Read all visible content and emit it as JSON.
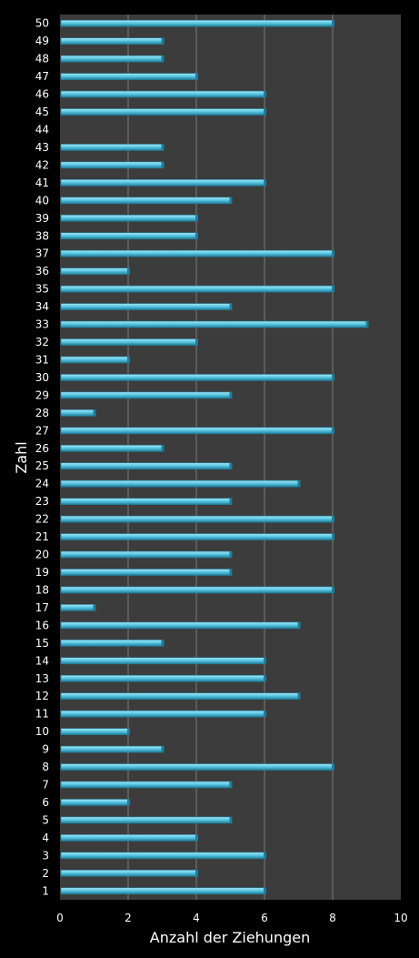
{
  "chart_data": {
    "type": "bar",
    "orientation": "horizontal",
    "xlabel": "Anzahl der Ziehungen",
    "ylabel": "Zahl",
    "xlim": [
      0,
      10
    ],
    "xticks": [
      "0",
      "2",
      "4",
      "6",
      "8",
      "10"
    ],
    "grid": "vertical",
    "categories": [
      "1",
      "2",
      "3",
      "4",
      "5",
      "6",
      "7",
      "8",
      "9",
      "10",
      "11",
      "12",
      "13",
      "14",
      "15",
      "16",
      "17",
      "18",
      "19",
      "20",
      "21",
      "22",
      "23",
      "24",
      "25",
      "26",
      "27",
      "28",
      "29",
      "30",
      "31",
      "32",
      "33",
      "34",
      "35",
      "36",
      "37",
      "38",
      "39",
      "40",
      "41",
      "42",
      "43",
      "44",
      "45",
      "46",
      "47",
      "48",
      "49",
      "50"
    ],
    "values": [
      6,
      4,
      6,
      4,
      5,
      2,
      5,
      8,
      3,
      2,
      6,
      7,
      6,
      6,
      3,
      7,
      1,
      8,
      5,
      5,
      8,
      8,
      5,
      7,
      5,
      3,
      8,
      1,
      5,
      8,
      2,
      4,
      9,
      5,
      8,
      2,
      8,
      4,
      4,
      5,
      6,
      3,
      3,
      0,
      6,
      6,
      4,
      3,
      3,
      8
    ],
    "colors": {
      "background": "#000000",
      "plot_area": "#3c3c3c",
      "gridline": "#7a7a7a",
      "bar_face": "#5bc8e4",
      "bar_light": "#a6e6f6",
      "bar_dark": "#1f7d99",
      "text": "#ffffff"
    }
  }
}
